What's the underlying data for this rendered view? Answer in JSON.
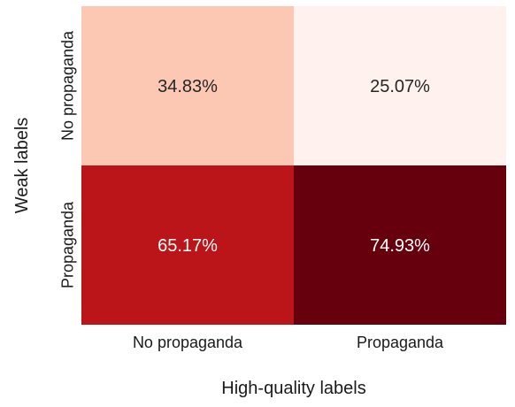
{
  "chart_data": {
    "type": "heatmap",
    "xlabel": "High-quality labels",
    "ylabel": "Weak labels",
    "x_categories": [
      "No propaganda",
      "Propaganda"
    ],
    "y_categories": [
      "No propaganda",
      "Propaganda"
    ],
    "values": [
      [
        34.83,
        25.07
      ],
      [
        65.17,
        74.93
      ]
    ],
    "value_labels": [
      [
        "34.83%",
        "25.07%"
      ],
      [
        "65.17%",
        "74.93%"
      ]
    ],
    "colormap": "Reds",
    "vmin": 25.07,
    "vmax": 74.93,
    "cell_colors": [
      [
        "#fdc8b3",
        "#fff2ee"
      ],
      [
        "#bb151a",
        "#67000d"
      ]
    ],
    "colorbar": false,
    "grid": false
  }
}
